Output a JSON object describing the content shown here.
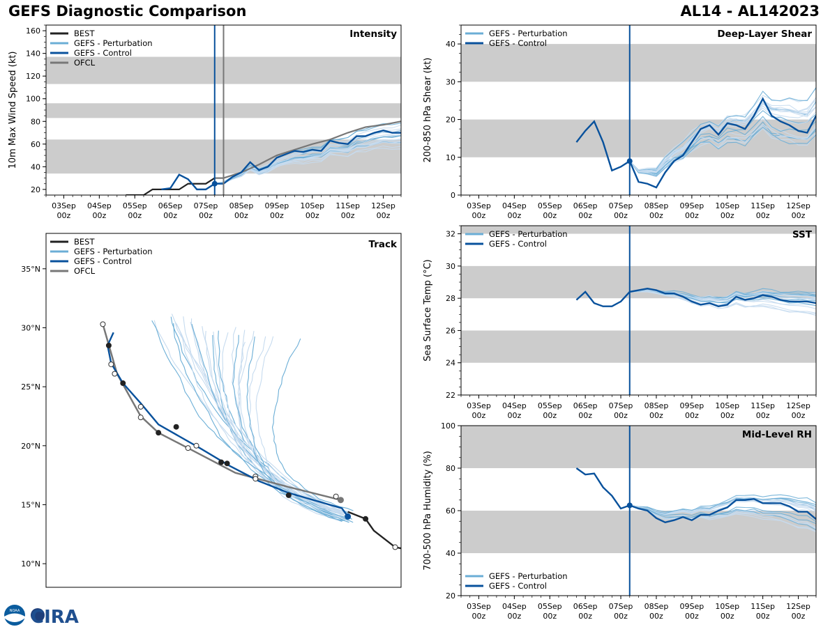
{
  "header": {
    "title_left": "GEFS Diagnostic Comparison",
    "title_right": "AL14 - AL142023"
  },
  "logo": {
    "text": "CIRA",
    "noaa_text": "NOAA"
  },
  "colors": {
    "best": "#222222",
    "perturbation": "#6baed6",
    "perturbation_light": "#c6dbef",
    "control": "#08519c",
    "ofcl": "#777777",
    "band": "#cccccc"
  },
  "time_axis": {
    "ticks": [
      {
        "t": 0,
        "day": "03Sep",
        "hour": "00z"
      },
      {
        "t": 1,
        "day": "04Sep",
        "hour": "00z"
      },
      {
        "t": 2,
        "day": "05Sep",
        "hour": "00z"
      },
      {
        "t": 3,
        "day": "06Sep",
        "hour": "00z"
      },
      {
        "t": 4,
        "day": "07Sep",
        "hour": "00z"
      },
      {
        "t": 5,
        "day": "08Sep",
        "hour": "00z"
      },
      {
        "t": 6,
        "day": "09Sep",
        "hour": "00z"
      },
      {
        "t": 7,
        "day": "10Sep",
        "hour": "00z"
      },
      {
        "t": 8,
        "day": "11Sep",
        "hour": "00z"
      },
      {
        "t": 9,
        "day": "12Sep",
        "hour": "00z"
      }
    ],
    "xlim": [
      -0.5,
      9.5
    ],
    "init_time": 4.25,
    "ofcl_time": 4.5
  },
  "chart_data": [
    {
      "id": "intensity",
      "type": "line",
      "title": "Intensity",
      "ylabel": "10m Max Wind Speed (kt)",
      "ylim": [
        15,
        165
      ],
      "yticks": [
        20,
        40,
        60,
        80,
        100,
        120,
        140,
        160
      ],
      "bands": [
        [
          34,
          64
        ],
        [
          83,
          96
        ],
        [
          113,
          137
        ]
      ],
      "legend": [
        "BEST",
        "GEFS - Perturbation",
        "GEFS - Control",
        "OFCL"
      ],
      "best": [
        [
          1.75,
          15
        ],
        [
          2.25,
          15
        ],
        [
          2.5,
          20
        ],
        [
          3,
          20
        ],
        [
          3.25,
          20
        ],
        [
          3.5,
          25
        ],
        [
          4,
          25
        ],
        [
          4.25,
          30
        ]
      ],
      "ofcl": [
        [
          4.25,
          30
        ],
        [
          4.5,
          30
        ],
        [
          5,
          35
        ],
        [
          5.5,
          42
        ],
        [
          6,
          50
        ],
        [
          6.5,
          55
        ],
        [
          7,
          60
        ],
        [
          7.5,
          64
        ],
        [
          8,
          70
        ],
        [
          8.5,
          75
        ],
        [
          9,
          77
        ],
        [
          9.5,
          80
        ]
      ],
      "control": [
        [
          2.75,
          20
        ],
        [
          3,
          21
        ],
        [
          3.25,
          33
        ],
        [
          3.5,
          29
        ],
        [
          3.75,
          20
        ],
        [
          4,
          20
        ],
        [
          4.25,
          25
        ],
        [
          4.5,
          25
        ],
        [
          4.75,
          31
        ],
        [
          5,
          35
        ],
        [
          5.25,
          44
        ],
        [
          5.5,
          37
        ],
        [
          5.75,
          40
        ],
        [
          6,
          48
        ],
        [
          6.25,
          51
        ],
        [
          6.5,
          54
        ],
        [
          6.75,
          53
        ],
        [
          7,
          55
        ],
        [
          7.25,
          54
        ],
        [
          7.5,
          63
        ],
        [
          7.75,
          61
        ],
        [
          8,
          60
        ],
        [
          8.25,
          67
        ],
        [
          8.5,
          67
        ],
        [
          8.75,
          70
        ],
        [
          9,
          72
        ],
        [
          9.25,
          70
        ],
        [
          9.5,
          70
        ]
      ],
      "control_init": [
        4.25,
        25
      ],
      "ensemble": {
        "t0": 4.25,
        "dt": 0.25,
        "start": 25,
        "end_mean": 64,
        "spread": 14,
        "members": 20
      }
    },
    {
      "id": "shear",
      "type": "line",
      "title": "Deep-Layer Shear",
      "ylabel": "200-850 hPa Shear (kt)",
      "ylim": [
        0,
        45
      ],
      "yticks": [
        0,
        10,
        20,
        30,
        40
      ],
      "bands": [
        [
          10,
          20
        ],
        [
          30,
          40
        ]
      ],
      "legend": [
        "GEFS - Perturbation",
        "GEFS - Control"
      ],
      "control": [
        [
          2.75,
          14
        ],
        [
          3,
          17
        ],
        [
          3.25,
          19.5
        ],
        [
          3.5,
          14
        ],
        [
          3.75,
          6.5
        ],
        [
          4,
          7.5
        ],
        [
          4.25,
          9
        ],
        [
          4.5,
          3.5
        ],
        [
          4.75,
          3
        ],
        [
          5,
          2
        ],
        [
          5.25,
          6
        ],
        [
          5.5,
          9
        ],
        [
          5.75,
          10.5
        ],
        [
          6,
          14
        ],
        [
          6.25,
          17.5
        ],
        [
          6.5,
          18.5
        ],
        [
          6.75,
          16
        ],
        [
          7,
          19
        ],
        [
          7.25,
          18.5
        ],
        [
          7.5,
          17.5
        ],
        [
          7.75,
          21
        ],
        [
          8,
          25.5
        ],
        [
          8.25,
          21
        ],
        [
          8.5,
          19.5
        ],
        [
          8.75,
          18.5
        ],
        [
          9,
          17
        ],
        [
          9.25,
          16.5
        ],
        [
          9.5,
          21
        ]
      ],
      "control_init": [
        4.25,
        9
      ],
      "ensemble": {
        "t0": 4.25,
        "dt": 0.25,
        "start": 9,
        "end_mean": 22,
        "spread": 9,
        "members": 20
      }
    },
    {
      "id": "sst",
      "type": "line",
      "title": "SST",
      "ylabel": "Sea Surface Temp (°C)",
      "ylim": [
        22,
        32.5
      ],
      "yticks": [
        22,
        24,
        26,
        28,
        30,
        32
      ],
      "bands": [
        [
          24,
          26
        ],
        [
          28,
          30
        ],
        [
          32,
          34
        ]
      ],
      "legend": [
        "GEFS - Perturbation",
        "GEFS - Control"
      ],
      "control": [
        [
          2.75,
          27.9
        ],
        [
          3,
          28.4
        ],
        [
          3.25,
          27.7
        ],
        [
          3.5,
          27.5
        ],
        [
          3.75,
          27.5
        ],
        [
          4,
          27.8
        ],
        [
          4.25,
          28.4
        ],
        [
          4.5,
          28.5
        ],
        [
          4.75,
          28.6
        ],
        [
          5,
          28.5
        ],
        [
          5.25,
          28.3
        ],
        [
          5.5,
          28.3
        ],
        [
          5.75,
          28.1
        ],
        [
          6,
          27.8
        ],
        [
          6.25,
          27.6
        ],
        [
          6.5,
          27.7
        ],
        [
          6.75,
          27.5
        ],
        [
          7,
          27.6
        ],
        [
          7.25,
          28.1
        ],
        [
          7.5,
          27.9
        ],
        [
          7.75,
          28.0
        ],
        [
          8,
          28.2
        ],
        [
          8.25,
          28.1
        ],
        [
          8.5,
          27.9
        ],
        [
          8.75,
          27.8
        ],
        [
          9,
          27.8
        ],
        [
          9.25,
          27.8
        ],
        [
          9.5,
          27.7
        ]
      ],
      "ensemble": {
        "t0": 4.25,
        "dt": 0.25,
        "start": 28.4,
        "end_mean": 27.8,
        "spread": 0.8,
        "members": 20
      }
    },
    {
      "id": "rh",
      "type": "line",
      "title": "Mid-Level RH",
      "ylabel": "700-500 hPa Humidity (%)",
      "ylim": [
        20,
        100
      ],
      "yticks": [
        20,
        40,
        60,
        80,
        100
      ],
      "bands": [
        [
          40,
          60
        ],
        [
          80,
          100
        ]
      ],
      "legend": [
        "GEFS - Perturbation",
        "GEFS - Control"
      ],
      "control": [
        [
          2.75,
          80
        ],
        [
          3,
          77
        ],
        [
          3.25,
          77.5
        ],
        [
          3.5,
          71
        ],
        [
          3.75,
          67
        ],
        [
          4,
          61
        ],
        [
          4.25,
          62.5
        ],
        [
          4.5,
          61
        ],
        [
          4.75,
          60
        ],
        [
          5,
          56.5
        ],
        [
          5.25,
          54.5
        ],
        [
          5.5,
          55.5
        ],
        [
          5.75,
          57
        ],
        [
          6,
          55.5
        ],
        [
          6.25,
          58
        ],
        [
          6.5,
          58
        ],
        [
          6.75,
          60
        ],
        [
          7,
          61.5
        ],
        [
          7.25,
          65
        ],
        [
          7.5,
          65
        ],
        [
          7.75,
          65.5
        ],
        [
          8,
          63.5
        ],
        [
          8.25,
          63.5
        ],
        [
          8.5,
          63.5
        ],
        [
          8.75,
          62
        ],
        [
          9,
          59.5
        ],
        [
          9.25,
          59.5
        ],
        [
          9.5,
          56
        ]
      ],
      "control_init": [
        4.25,
        62.5
      ],
      "ensemble": {
        "t0": 4.25,
        "dt": 0.25,
        "start": 62.5,
        "end_mean": 57,
        "spread": 8,
        "members": 20
      }
    },
    {
      "id": "track",
      "type": "map-track",
      "title": "Track",
      "lat_range": [
        8,
        38
      ],
      "lon_range": [
        -70,
        -40
      ],
      "lat_ticks": [
        {
          "lat": 10,
          "label": "10°N"
        },
        {
          "lat": 15,
          "label": "15°N"
        },
        {
          "lat": 20,
          "label": "20°N"
        },
        {
          "lat": 25,
          "label": "25°N"
        },
        {
          "lat": 30,
          "label": "30°N"
        },
        {
          "lat": 35,
          "label": "35°N"
        }
      ],
      "legend": [
        "BEST",
        "GEFS - Perturbation",
        "GEFS - Control",
        "OFCL"
      ],
      "best": [
        [
          -40.0,
          11.3
        ],
        [
          -40.5,
          11.4
        ],
        [
          -42.3,
          12.8
        ],
        [
          -43.0,
          13.8
        ],
        [
          -44.5,
          14.4
        ]
      ],
      "best_points": [
        [
          -40.5,
          11.4,
          "open"
        ],
        [
          -43.0,
          13.8,
          "filled"
        ]
      ],
      "control": [
        [
          -44.5,
          14.0
        ],
        [
          -45.0,
          14.7
        ],
        [
          -49.5,
          16.0
        ],
        [
          -52,
          17.0
        ],
        [
          -54.5,
          18.3
        ],
        [
          -57.0,
          19.8
        ],
        [
          -60.5,
          21.8
        ],
        [
          -62.0,
          23.6
        ],
        [
          -63.5,
          25.3
        ],
        [
          -64.5,
          27.0
        ],
        [
          -64.8,
          28.5
        ],
        [
          -64.3,
          29.6
        ]
      ],
      "control_points": [
        [
          -44.5,
          14.0,
          "filled-blue"
        ],
        [
          -49.5,
          15.8,
          "filled"
        ],
        [
          -52.3,
          17.2,
          "open"
        ],
        [
          -55.2,
          18.6,
          "filled"
        ],
        [
          -57.3,
          20.0,
          "open"
        ],
        [
          -59.0,
          21.6,
          "filled"
        ],
        [
          -62.0,
          23.3,
          "open"
        ],
        [
          -63.5,
          25.3,
          "filled"
        ],
        [
          -64.5,
          26.9,
          "open"
        ],
        [
          -64.7,
          28.5,
          "filled"
        ]
      ],
      "ofcl": [
        [
          -45.1,
          15.4
        ],
        [
          -49.5,
          16.5
        ],
        [
          -54,
          17.7
        ],
        [
          -58,
          19.8
        ],
        [
          -60.5,
          21.1
        ],
        [
          -62.0,
          22.5
        ],
        [
          -64.0,
          26.1
        ],
        [
          -65.2,
          30.3
        ]
      ],
      "ofcl_points": [
        [
          -45.1,
          15.4,
          "filled-gray"
        ],
        [
          -45.5,
          15.7,
          "open"
        ],
        [
          -52.3,
          17.4,
          "open"
        ],
        [
          -54.7,
          18.5,
          "filled"
        ],
        [
          -58.0,
          19.8,
          "open"
        ],
        [
          -60.5,
          21.1,
          "filled"
        ],
        [
          -62.0,
          22.4,
          "open"
        ],
        [
          -64.2,
          26.1,
          "open"
        ],
        [
          -65.2,
          30.3,
          "open"
        ]
      ]
    }
  ]
}
